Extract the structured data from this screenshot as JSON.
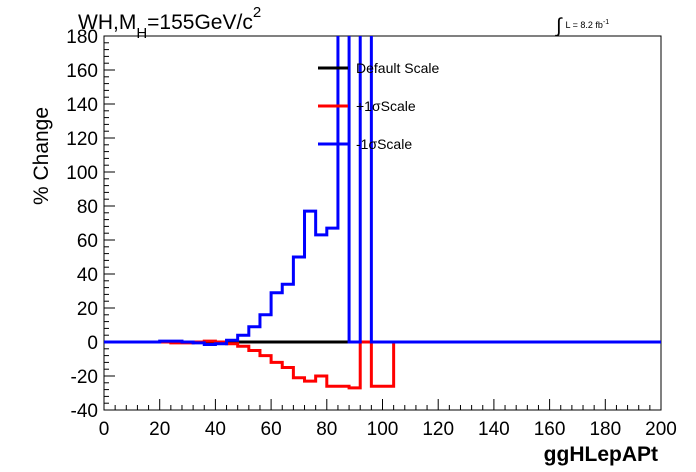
{
  "title": {
    "main": "WH,M",
    "sub": "H",
    "rest": "=155GeV/c",
    "sup": "2"
  },
  "lumi": {
    "integral": "∫",
    "text": "L = 8.2 fb",
    "sup": "-1"
  },
  "chart_data": {
    "type": "line",
    "xlabel": "ggHLepAPt",
    "ylabel": "% Change",
    "xlim": [
      0,
      200
    ],
    "ylim": [
      -40,
      180
    ],
    "xticks": [
      0,
      20,
      40,
      60,
      80,
      100,
      120,
      140,
      160,
      180,
      200
    ],
    "yticks": [
      -40,
      -20,
      0,
      20,
      40,
      60,
      80,
      100,
      120,
      140,
      160,
      180
    ],
    "grid": false,
    "legend_position": "top-center",
    "bin_edges": [
      0,
      4,
      8,
      12,
      16,
      20,
      24,
      28,
      32,
      36,
      40,
      44,
      48,
      52,
      56,
      60,
      64,
      68,
      72,
      76,
      80,
      84,
      88,
      92,
      96,
      100,
      104,
      108,
      112,
      116,
      120,
      124,
      128,
      132,
      136,
      140,
      144,
      148,
      152,
      156,
      160,
      164,
      168,
      172,
      176,
      180,
      184,
      188,
      192,
      196,
      200
    ],
    "series": [
      {
        "name": "Default Scale",
        "color": "#000000",
        "values": [
          0,
          0,
          0,
          0,
          0,
          0,
          0,
          0,
          0,
          0,
          0,
          0,
          0,
          0,
          0,
          0,
          0,
          0,
          0,
          0,
          0,
          0,
          0,
          0,
          0,
          0,
          0,
          0,
          0,
          0,
          0,
          0,
          0,
          0,
          0,
          0,
          0,
          0,
          0,
          0,
          0,
          0,
          0,
          0,
          0,
          0,
          0,
          0,
          0,
          0
        ]
      },
      {
        "name": "+1σScale",
        "color": "#ff0000",
        "values": [
          0,
          0,
          0,
          0,
          0,
          0,
          -0.5,
          -0.5,
          0,
          0.5,
          0,
          -1,
          -2.5,
          -5,
          -8,
          -12,
          -15,
          -21,
          -23,
          -20,
          -26,
          -26,
          -27,
          0,
          -26,
          -26,
          0,
          0,
          0,
          0,
          0,
          0,
          0,
          0,
          0,
          0,
          0,
          0,
          0,
          0,
          0,
          0,
          0,
          0,
          0,
          0,
          0,
          0,
          0,
          0
        ]
      },
      {
        "name": "-1σScale",
        "color": "#0000ff",
        "values": [
          0,
          0,
          0,
          0,
          0,
          0.5,
          0.5,
          0,
          -0.5,
          -1.5,
          -1,
          1,
          4,
          9,
          16,
          29,
          34,
          50,
          77,
          63,
          67,
          250,
          0,
          250,
          0,
          0,
          0,
          0,
          0,
          0,
          0,
          0,
          0,
          0,
          0,
          0,
          0,
          0,
          0,
          0,
          0,
          0,
          0,
          0,
          0,
          0,
          0,
          0,
          0,
          0
        ]
      }
    ]
  }
}
